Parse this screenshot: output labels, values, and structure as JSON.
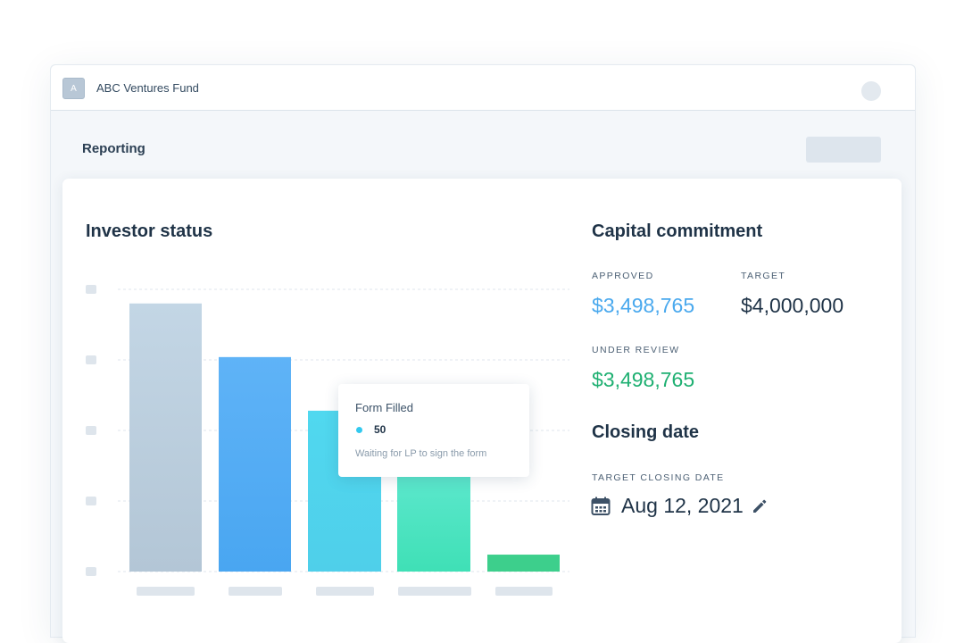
{
  "app": {
    "org_initial": "A",
    "org_name": "ABC Ventures Fund"
  },
  "page": {
    "title": "Reporting"
  },
  "investor_status": {
    "title": "Investor status"
  },
  "chart_data": {
    "type": "bar",
    "title": "Investor status",
    "categories": [
      "",
      "",
      "",
      "",
      ""
    ],
    "values": [
      95,
      76,
      57,
      38,
      6
    ],
    "ylim": [
      0,
      100
    ],
    "grid": true,
    "colors": [
      "#c3d6e5",
      "#5fb3f7",
      "#50d8ef",
      "#5fe8cf",
      "#3dcf8c"
    ],
    "tooltip": {
      "title": "Form Filled",
      "value": "50",
      "description": "Waiting for LP to sign the form",
      "color": "#33c9ef"
    }
  },
  "capital_commitment": {
    "title": "Capital commitment",
    "approved": {
      "label": "APPROVED",
      "value": "$3,498,765",
      "color": "#4aa9ee"
    },
    "target": {
      "label": "TARGET",
      "value": "$4,000,000",
      "color": "#1f3347"
    },
    "under_review": {
      "label": "UNDER REVIEW",
      "value": "$3,498,765",
      "color": "#1fb072"
    }
  },
  "closing_date": {
    "title": "Closing date",
    "label": "TARGET CLOSING DATE",
    "value": "Aug 12, 2021",
    "icons": [
      "calendar-icon",
      "pencil-icon"
    ]
  }
}
